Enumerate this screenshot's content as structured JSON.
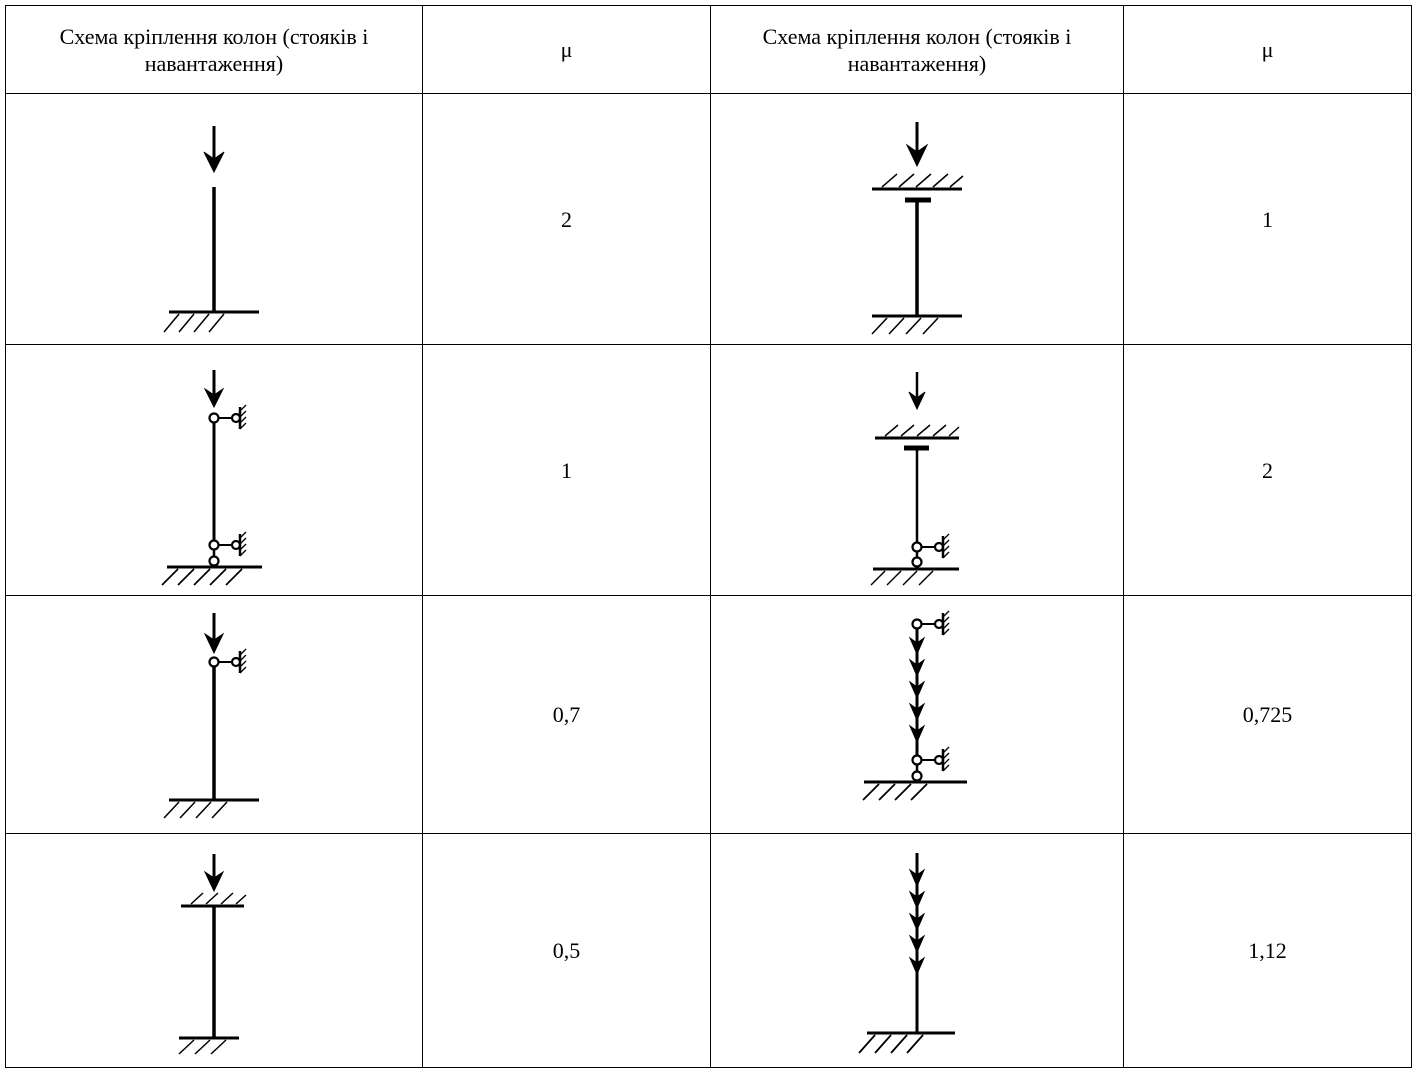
{
  "table": {
    "headers": [
      "Схема кріплення колон (стояків і навантаження)",
      "μ",
      "Схема кріплення колон (стояків і навантаження)",
      "μ"
    ],
    "rows": [
      {
        "left_scheme": "free-top-fixed-base-icon",
        "left_mu": "2",
        "right_scheme": "clamped-top-fixed-base-icon",
        "right_mu": "1"
      },
      {
        "left_scheme": "pinned-top-pinned-base-icon",
        "left_mu": "1",
        "right_scheme": "clamped-top-pinned-base-icon",
        "right_mu": "2"
      },
      {
        "left_scheme": "pinned-top-fixed-base-icon",
        "left_mu": "0,7",
        "right_scheme": "distributed-load-pinned-pinned-icon",
        "right_mu": "0,725"
      },
      {
        "left_scheme": "clamped-top-fixed-base-short-icon",
        "left_mu": "0,5",
        "right_scheme": "distributed-load-fixed-base-icon",
        "right_mu": "1,12"
      }
    ]
  }
}
